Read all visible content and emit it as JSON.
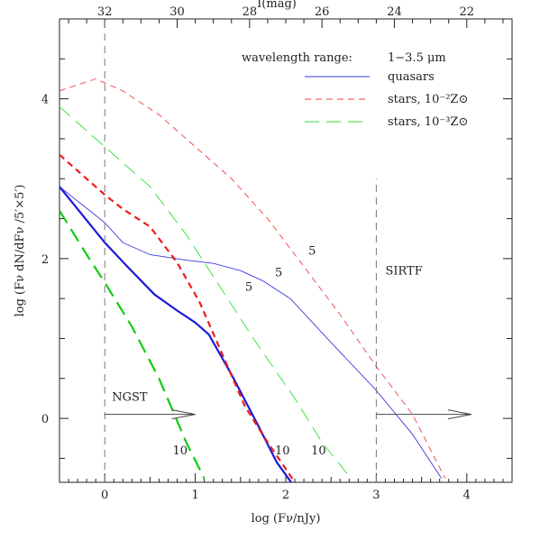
{
  "chart_data": {
    "type": "line",
    "xlabel": "log (Fν/nJy)",
    "x2label": "I(mag)",
    "ylabel": "log (Fν dN/dFν /5′×5′)",
    "xlim": [
      -0.5,
      4.5
    ],
    "ylim": [
      -0.8,
      5.0
    ],
    "x_ticks": [
      "0",
      "1",
      "2",
      "3",
      "4"
    ],
    "y_ticks": [
      "0",
      "2",
      "4"
    ],
    "x2_ticks": [
      "32",
      "30",
      "28",
      "26",
      "24",
      "22"
    ],
    "legend": {
      "title": "wavelength range:",
      "range": "1−3.5 μm",
      "entries": [
        {
          "label": "quasars",
          "color": "#3a3ae0",
          "dash": "solid"
        },
        {
          "label": "stars, 10⁻²Z⊙",
          "color": "#ee4040",
          "dash": "short"
        },
        {
          "label": "stars, 10⁻³Z⊙",
          "color": "#33dd33",
          "dash": "long"
        }
      ]
    },
    "series": [
      {
        "id": "quasars-thin",
        "color": "#3a3ae0",
        "dash": "solid",
        "width": 0.9,
        "x": [
          -0.5,
          0.0,
          0.2,
          0.5,
          0.9,
          1.2,
          1.5,
          1.75,
          2.05,
          2.5,
          3.0,
          3.4,
          3.72
        ],
        "y": [
          2.9,
          2.45,
          2.2,
          2.05,
          1.98,
          1.94,
          1.85,
          1.72,
          1.5,
          0.95,
          0.35,
          -0.2,
          -0.75
        ]
      },
      {
        "id": "stars-2-thin",
        "color": "#ee4040",
        "dash": "short",
        "width": 0.9,
        "x": [
          -0.5,
          -0.1,
          0.2,
          0.6,
          1.0,
          1.4,
          1.8,
          2.2,
          2.6,
          3.0,
          3.4,
          3.76
        ],
        "y": [
          4.1,
          4.25,
          4.1,
          3.8,
          3.4,
          3.0,
          2.5,
          1.9,
          1.3,
          0.65,
          0.05,
          -0.75
        ]
      },
      {
        "id": "stars-3-thin",
        "color": "#33dd33",
        "dash": "long",
        "width": 0.9,
        "x": [
          -0.5,
          0.0,
          0.5,
          0.9,
          1.3,
          1.7,
          2.1,
          2.4,
          2.72
        ],
        "y": [
          3.9,
          3.4,
          2.9,
          2.3,
          1.6,
          0.9,
          0.25,
          -0.3,
          -0.75
        ]
      },
      {
        "id": "quasars-thick",
        "color": "#1a1ad8",
        "dash": "solid",
        "width": 2.2,
        "x": [
          -0.5,
          0.0,
          0.25,
          0.55,
          0.8,
          1.0,
          1.15,
          1.4,
          1.7,
          1.9,
          2.06
        ],
        "y": [
          2.9,
          2.2,
          1.9,
          1.55,
          1.35,
          1.2,
          1.05,
          0.55,
          -0.1,
          -0.55,
          -0.8
        ]
      },
      {
        "id": "stars-2-thick",
        "color": "#ee1a1a",
        "dash": "short",
        "width": 2.2,
        "x": [
          -0.5,
          0.0,
          0.2,
          0.5,
          0.8,
          1.05,
          1.3,
          1.55,
          1.8,
          1.95,
          2.1
        ],
        "y": [
          3.3,
          2.8,
          2.62,
          2.4,
          1.95,
          1.45,
          0.8,
          0.15,
          -0.3,
          -0.55,
          -0.8
        ]
      },
      {
        "id": "stars-3-thick",
        "color": "#11cc11",
        "dash": "long",
        "width": 2.2,
        "x": [
          -0.5,
          -0.2,
          0.0,
          0.3,
          0.6,
          0.9,
          1.1
        ],
        "y": [
          2.6,
          2.05,
          1.7,
          1.15,
          0.5,
          -0.3,
          -0.75
        ]
      }
    ],
    "annotations": [
      {
        "text": "5",
        "x": 1.88,
        "y": 1.78
      },
      {
        "text": "5",
        "x": 2.25,
        "y": 2.05
      },
      {
        "text": "5",
        "x": 1.55,
        "y": 1.6
      },
      {
        "text": "10",
        "x": 0.75,
        "y": -0.45
      },
      {
        "text": "10",
        "x": 1.88,
        "y": -0.45
      },
      {
        "text": "10",
        "x": 2.28,
        "y": -0.45
      },
      {
        "text": "SIRTF",
        "x": 3.1,
        "y": 1.8
      },
      {
        "text": "NGST",
        "x": 0.08,
        "y": 0.22
      }
    ],
    "vlines": [
      {
        "x": 0,
        "ymin": -0.8,
        "ymax": 5.0
      },
      {
        "x": 3,
        "ymin": -0.8,
        "ymax": 3.0
      }
    ],
    "arrows": [
      {
        "x0": 0,
        "x1": 1.0,
        "y": 0.05
      },
      {
        "x0": 3,
        "x1": 4.05,
        "y": 0.05
      }
    ]
  }
}
